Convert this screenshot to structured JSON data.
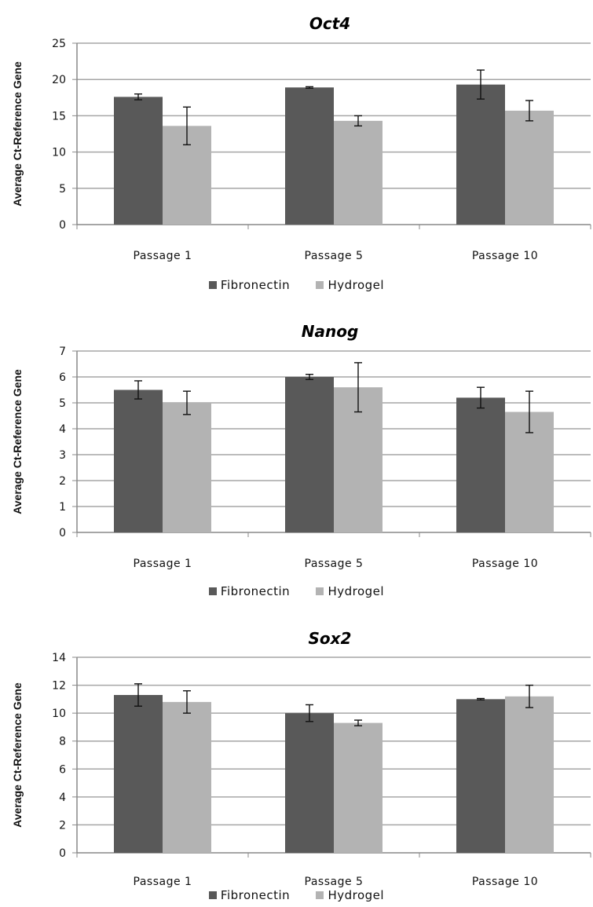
{
  "colors": {
    "fibronectin": "#595959",
    "hydrogel": "#b3b3b3",
    "grid": "#a6a6a6",
    "axis": "#888888"
  },
  "chart_data": [
    {
      "type": "bar",
      "title": "Oct4",
      "ylabel": "Average Ct-Reference Gene",
      "categories": [
        "Passage 1",
        "Passage 5",
        "Passage 10"
      ],
      "ylim": [
        0,
        25
      ],
      "yticks": [
        0,
        5,
        10,
        15,
        20,
        25
      ],
      "grid": true,
      "legend": "bottom",
      "series": [
        {
          "name": "Fibronectin",
          "values": [
            17.6,
            18.9,
            19.3
          ],
          "errors": [
            0.4,
            0.1,
            2.0
          ]
        },
        {
          "name": "Hydrogel",
          "values": [
            13.6,
            14.3,
            15.7
          ],
          "errors": [
            2.6,
            0.7,
            1.4
          ]
        }
      ]
    },
    {
      "type": "bar",
      "title": "Nanog",
      "ylabel": "Average Ct-Reference Gene",
      "categories": [
        "Passage 1",
        "Passage 5",
        "Passage 10"
      ],
      "ylim": [
        0,
        7
      ],
      "yticks": [
        0,
        1,
        2,
        3,
        4,
        5,
        6,
        7
      ],
      "grid": true,
      "legend": "bottom",
      "series": [
        {
          "name": "Fibronectin",
          "values": [
            5.5,
            6.0,
            5.2
          ],
          "errors": [
            0.35,
            0.1,
            0.4
          ]
        },
        {
          "name": "Hydrogel",
          "values": [
            5.0,
            5.6,
            4.65
          ],
          "errors": [
            0.45,
            0.95,
            0.8
          ]
        }
      ]
    },
    {
      "type": "bar",
      "title": "Sox2",
      "ylabel": "Average Ct-Reference Gene",
      "categories": [
        "Passage 1",
        "Passage 5",
        "Passage 10"
      ],
      "ylim": [
        0,
        14
      ],
      "yticks": [
        0,
        2,
        4,
        6,
        8,
        10,
        12,
        14
      ],
      "grid": true,
      "legend": "bottom",
      "series": [
        {
          "name": "Fibronectin",
          "values": [
            11.3,
            10.0,
            11.0
          ],
          "errors": [
            0.8,
            0.6,
            0.05
          ]
        },
        {
          "name": "Hydrogel",
          "values": [
            10.8,
            9.3,
            11.2
          ],
          "errors": [
            0.8,
            0.2,
            0.8
          ]
        }
      ]
    }
  ]
}
